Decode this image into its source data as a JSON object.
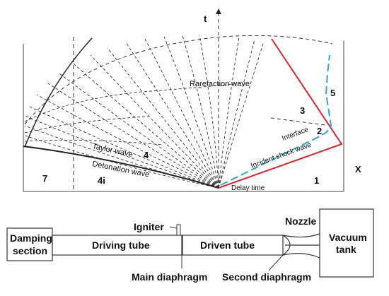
{
  "wave_diagram": {
    "t_axis_label": "t",
    "x_axis_label": "X",
    "rarefaction_label": "Rarefaction wave",
    "taylor_label": "Taylor wave",
    "detonation_label": "Detonation wave",
    "interface_label": "Interface",
    "incident_shock_label": "Incident shock wave",
    "delay_time_label": "Delay time",
    "regions": {
      "r1": "1",
      "r2": "2",
      "r3": "3",
      "r4": "4",
      "r4i": "4i",
      "r5": "5",
      "r7": "7"
    },
    "colors": {
      "shock_red": "#d9262c",
      "interface_blue": "#2aa6d8",
      "line_dark": "#222222"
    }
  },
  "apparatus": {
    "damping_section": [
      "Damping",
      "section"
    ],
    "igniter": "Igniter",
    "driving_tube": "Driving tube",
    "driven_tube": "Driven tube",
    "nozzle": "Nozzle",
    "vacuum_tank": [
      "Vacuum",
      "tank"
    ],
    "main_diaphragm": "Main diaphragm",
    "second_diaphragm": "Second diaphragm"
  }
}
